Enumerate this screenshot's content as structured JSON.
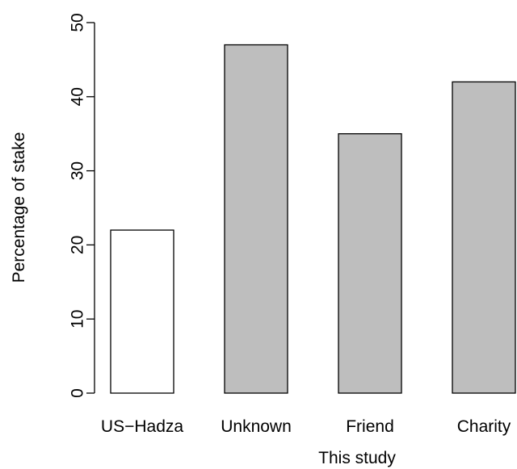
{
  "chart_data": {
    "type": "bar",
    "categories": [
      "US−Hadza",
      "Unknown",
      "Friend",
      "Charity"
    ],
    "values": [
      22,
      47,
      35,
      42
    ],
    "bar_colors": [
      "#ffffff",
      "#bebebe",
      "#bebebe",
      "#bebebe"
    ],
    "ylabel": "Percentage of stake",
    "xlabel": "This study",
    "ylim": [
      0,
      50
    ],
    "yticks": [
      0,
      10,
      20,
      30,
      40,
      50
    ],
    "grid": false,
    "legend": "none"
  }
}
